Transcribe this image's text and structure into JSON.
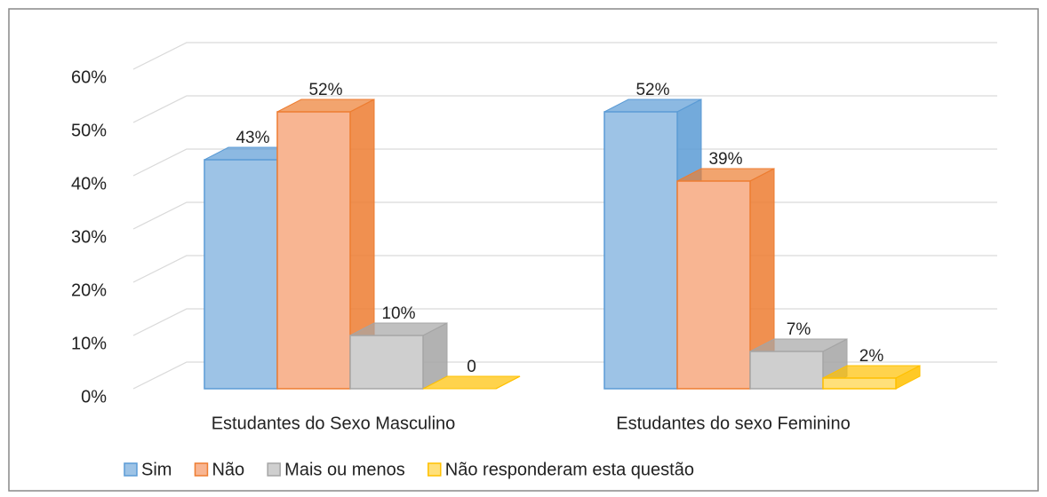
{
  "chart_data": {
    "type": "bar3d",
    "categories": [
      "Estudantes do Sexo Masculino",
      "Estudantes do sexo Feminino"
    ],
    "series": [
      {
        "name": "Sim",
        "color": "#9dc3e6",
        "edge": "#5b9bd5",
        "values": [
          43,
          52
        ],
        "value_labels": [
          "43%",
          "52%"
        ]
      },
      {
        "name": "Não",
        "color": "#f8b592",
        "edge": "#ed7d31",
        "values": [
          52,
          39
        ],
        "value_labels": [
          "52%",
          "39%"
        ]
      },
      {
        "name": "Mais ou menos",
        "color": "#cfcfcf",
        "edge": "#a5a5a5",
        "values": [
          10,
          7
        ],
        "value_labels": [
          "10%",
          "7%"
        ]
      },
      {
        "name": "Não responderam esta questão",
        "color": "#ffe07a",
        "edge": "#ffc000",
        "values": [
          0,
          2
        ],
        "value_labels": [
          "0",
          "2%"
        ]
      }
    ],
    "ylim": [
      0,
      60
    ],
    "yticks": [
      {
        "value": 0,
        "label": "0%"
      },
      {
        "value": 10,
        "label": "10%"
      },
      {
        "value": 20,
        "label": "20%"
      },
      {
        "value": 30,
        "label": "30%"
      },
      {
        "value": 40,
        "label": "40%"
      },
      {
        "value": 50,
        "label": "50%"
      },
      {
        "value": 60,
        "label": "60%"
      }
    ],
    "grid": true,
    "legend": "bottom"
  }
}
